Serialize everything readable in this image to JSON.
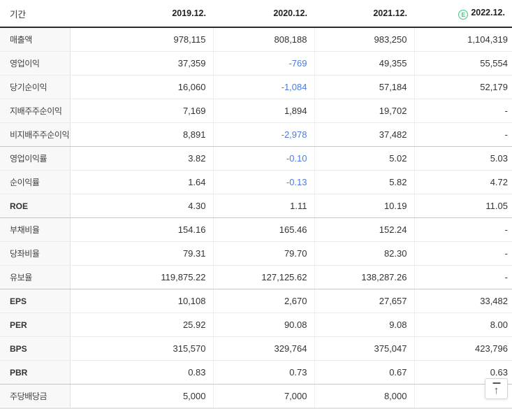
{
  "table": {
    "period_label": "기간",
    "estimate_badge": "E",
    "columns": [
      {
        "label": "2019.12.",
        "estimate": false
      },
      {
        "label": "2020.12.",
        "estimate": false
      },
      {
        "label": "2021.12.",
        "estimate": false
      },
      {
        "label": "2022.12.",
        "estimate": true
      }
    ],
    "rows": [
      {
        "label": "매출액",
        "bold": false,
        "group_start": false,
        "values": [
          "978,115",
          "808,188",
          "983,250",
          "1,104,319"
        ]
      },
      {
        "label": "영업이익",
        "bold": false,
        "group_start": false,
        "values": [
          "37,359",
          "-769",
          "49,355",
          "55,554"
        ]
      },
      {
        "label": "당기순이익",
        "bold": false,
        "group_start": false,
        "values": [
          "16,060",
          "-1,084",
          "57,184",
          "52,179"
        ]
      },
      {
        "label": "지배주주순이익",
        "bold": false,
        "group_start": false,
        "values": [
          "7,169",
          "1,894",
          "19,702",
          "-"
        ]
      },
      {
        "label": "비지배주주순이익",
        "bold": false,
        "group_start": false,
        "values": [
          "8,891",
          "-2,978",
          "37,482",
          "-"
        ]
      },
      {
        "label": "영업이익률",
        "bold": false,
        "group_start": true,
        "values": [
          "3.82",
          "-0.10",
          "5.02",
          "5.03"
        ]
      },
      {
        "label": "순이익률",
        "bold": false,
        "group_start": false,
        "values": [
          "1.64",
          "-0.13",
          "5.82",
          "4.72"
        ]
      },
      {
        "label": "ROE",
        "bold": true,
        "group_start": false,
        "values": [
          "4.30",
          "1.11",
          "10.19",
          "11.05"
        ]
      },
      {
        "label": "부채비율",
        "bold": false,
        "group_start": true,
        "values": [
          "154.16",
          "165.46",
          "152.24",
          "-"
        ]
      },
      {
        "label": "당좌비율",
        "bold": false,
        "group_start": false,
        "values": [
          "79.31",
          "79.70",
          "82.30",
          "-"
        ]
      },
      {
        "label": "유보율",
        "bold": false,
        "group_start": false,
        "values": [
          "119,875.22",
          "127,125.62",
          "138,287.26",
          "-"
        ]
      },
      {
        "label": "EPS",
        "bold": true,
        "group_start": true,
        "values": [
          "10,108",
          "2,670",
          "27,657",
          "33,482"
        ]
      },
      {
        "label": "PER",
        "bold": true,
        "group_start": false,
        "values": [
          "25.92",
          "90.08",
          "9.08",
          "8.00"
        ]
      },
      {
        "label": "BPS",
        "bold": true,
        "group_start": false,
        "values": [
          "315,570",
          "329,764",
          "375,047",
          "423,796"
        ]
      },
      {
        "label": "PBR",
        "bold": true,
        "group_start": false,
        "values": [
          "0.83",
          "0.73",
          "0.67",
          "0.63"
        ]
      },
      {
        "label": "주당배당금",
        "bold": false,
        "group_start": true,
        "values": [
          "5,000",
          "7,000",
          "8,000",
          "0"
        ]
      }
    ]
  },
  "colors": {
    "negative_value": "#4a7ce0",
    "estimate_green": "#43ca83",
    "header_border": "#2b2b2b",
    "label_column_bg": "#f8f8f8"
  },
  "scroll_top": {
    "icon": "arrow-up-to-top",
    "glyph": "↑"
  }
}
